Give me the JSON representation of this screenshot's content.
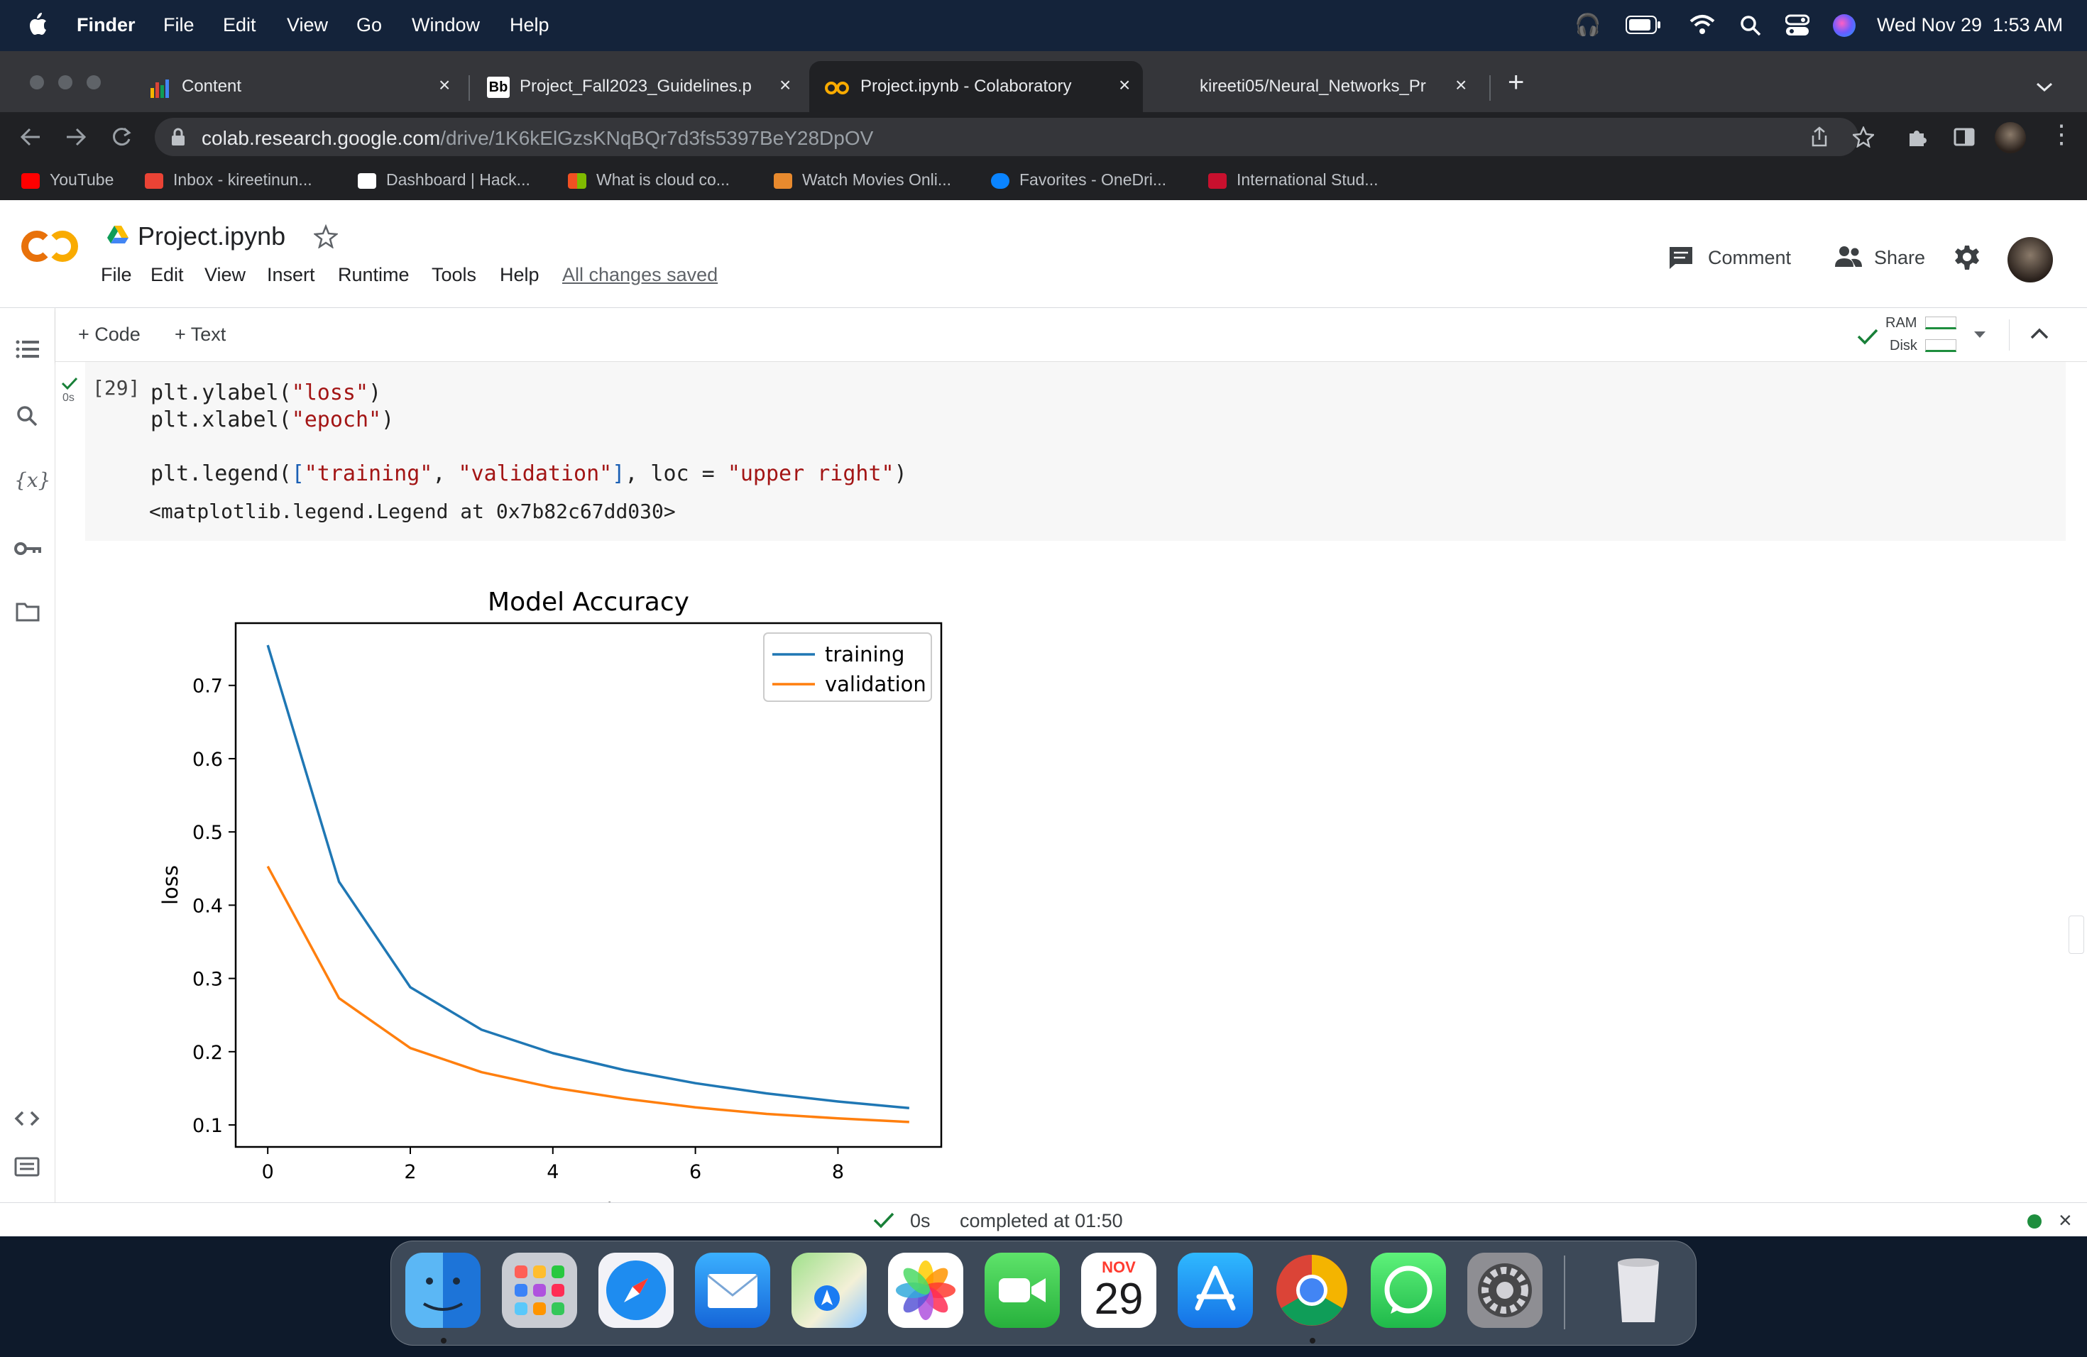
{
  "menubar": {
    "app": "Finder",
    "items": [
      "File",
      "Edit",
      "View",
      "Go",
      "Window",
      "Help"
    ],
    "date": "Wed Nov 29",
    "time": "1:53 AM"
  },
  "browser": {
    "tabs": [
      {
        "label": "Content"
      },
      {
        "label": "Project_Fall2023_Guidelines.p"
      },
      {
        "label": "Project.ipynb - Colaboratory"
      },
      {
        "label": "kireeti05/Neural_Networks_Pr"
      }
    ],
    "url_host": "colab.research.google.com",
    "url_path": "/drive/1K6kElGzsKNqBQr7d3fs5397BeY28DpOV",
    "bookmarks": [
      {
        "label": "YouTube",
        "color": "#ff0000"
      },
      {
        "label": "Inbox - kireetinun...",
        "color": "#ea4335"
      },
      {
        "label": "Dashboard | Hack...",
        "color": "#ffffff"
      },
      {
        "label": "What is cloud co...",
        "color": "#f25022"
      },
      {
        "label": "Watch Movies Onli...",
        "color": "#e88a2e"
      },
      {
        "label": "Favorites - OneDri...",
        "color": "#0a84ff"
      },
      {
        "label": "International Stud...",
        "color": "#c8102e"
      }
    ]
  },
  "colab": {
    "logo": "CO",
    "title": "Project.ipynb",
    "menu": [
      "File",
      "Edit",
      "View",
      "Insert",
      "Runtime",
      "Tools",
      "Help"
    ],
    "saved": "All changes saved",
    "comment": "Comment",
    "share": "Share",
    "add_code": "+ Code",
    "add_text": "+ Text",
    "ram": "RAM",
    "disk": "Disk"
  },
  "cell": {
    "exec_count": "[29]",
    "run_time": "0s",
    "code": {
      "l1_a": "plt.ylabel(",
      "l1_s": "\"loss\"",
      "l1_b": ")",
      "l2_a": "plt.xlabel(",
      "l2_s": "\"epoch\"",
      "l2_b": ")",
      "l3_a": "plt.legend(",
      "l3_br1": "[",
      "l3_s1": "\"training\"",
      "l3_c": ", ",
      "l3_s2": "\"validation\"",
      "l3_br2": "]",
      "l3_b": ", loc = ",
      "l3_s3": "\"upper right\"",
      "l3_e": ")"
    },
    "output_text": "<matplotlib.legend.Legend at 0x7b82c67dd030>"
  },
  "chart_data": {
    "type": "line",
    "title": "Model Accuracy",
    "xlabel": "epoch",
    "ylabel": "loss",
    "x": [
      0,
      1,
      2,
      3,
      4,
      5,
      6,
      7,
      8,
      9
    ],
    "xlim": [
      -0.45,
      9.45
    ],
    "ylim": [
      0.07,
      0.785
    ],
    "xticks": [
      0,
      2,
      4,
      6,
      8
    ],
    "yticks": [
      0.1,
      0.2,
      0.3,
      0.4,
      0.5,
      0.6,
      0.7
    ],
    "grid": false,
    "legend": "upper-right",
    "series": [
      {
        "name": "training",
        "color": "#1f77b4",
        "values": [
          0.755,
          0.432,
          0.288,
          0.23,
          0.198,
          0.175,
          0.157,
          0.143,
          0.132,
          0.123
        ]
      },
      {
        "name": "validation",
        "color": "#ff7f0e",
        "values": [
          0.453,
          0.273,
          0.205,
          0.172,
          0.151,
          0.136,
          0.124,
          0.115,
          0.109,
          0.104
        ]
      }
    ]
  },
  "status": {
    "time": "0s",
    "text": "completed at 01:50"
  },
  "dock": {
    "calendar_month": "NOV",
    "calendar_day": "29",
    "apps": [
      "finder-icon",
      "launchpad-icon",
      "safari-icon",
      "mail-icon",
      "maps-icon",
      "photos-icon",
      "facetime-icon",
      "calendar-icon",
      "app-store-icon",
      "chrome-icon",
      "whatsapp-icon",
      "system-settings-icon"
    ]
  }
}
